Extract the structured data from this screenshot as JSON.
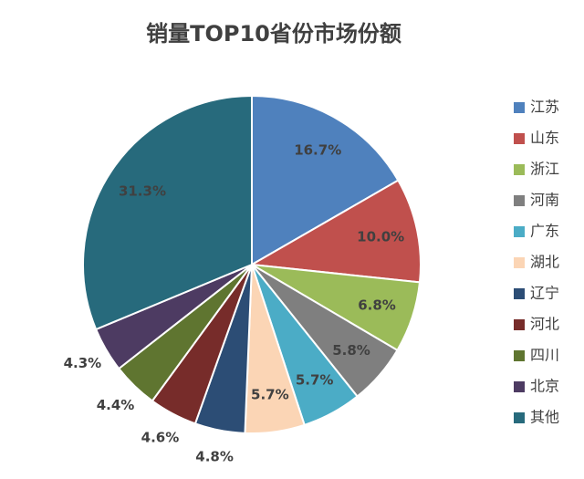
{
  "chart_data": {
    "type": "pie",
    "title": "销量TOP10省份市场份额",
    "categories": [
      "江苏",
      "山东",
      "浙江",
      "河南",
      "广东",
      "湖北",
      "辽宁",
      "河北",
      "四川",
      "北京",
      "其他"
    ],
    "values": [
      16.7,
      10.0,
      6.8,
      5.8,
      5.7,
      5.7,
      4.8,
      4.6,
      4.4,
      4.3,
      31.3
    ],
    "value_labels": [
      "16.7%",
      "10.0%",
      "6.8%",
      "5.8%",
      "5.7%",
      "5.7%",
      "4.8%",
      "4.6%",
      "4.4%",
      "4.3%",
      "31.3%"
    ],
    "colors": [
      "#4f81bd",
      "#c0504d",
      "#9bbb59",
      "#7f7f7f",
      "#4bacc6",
      "#fbd5b5",
      "#2c4d75",
      "#772c2a",
      "#5f7530",
      "#4d3b62",
      "#276a7c"
    ],
    "legend": "right"
  }
}
